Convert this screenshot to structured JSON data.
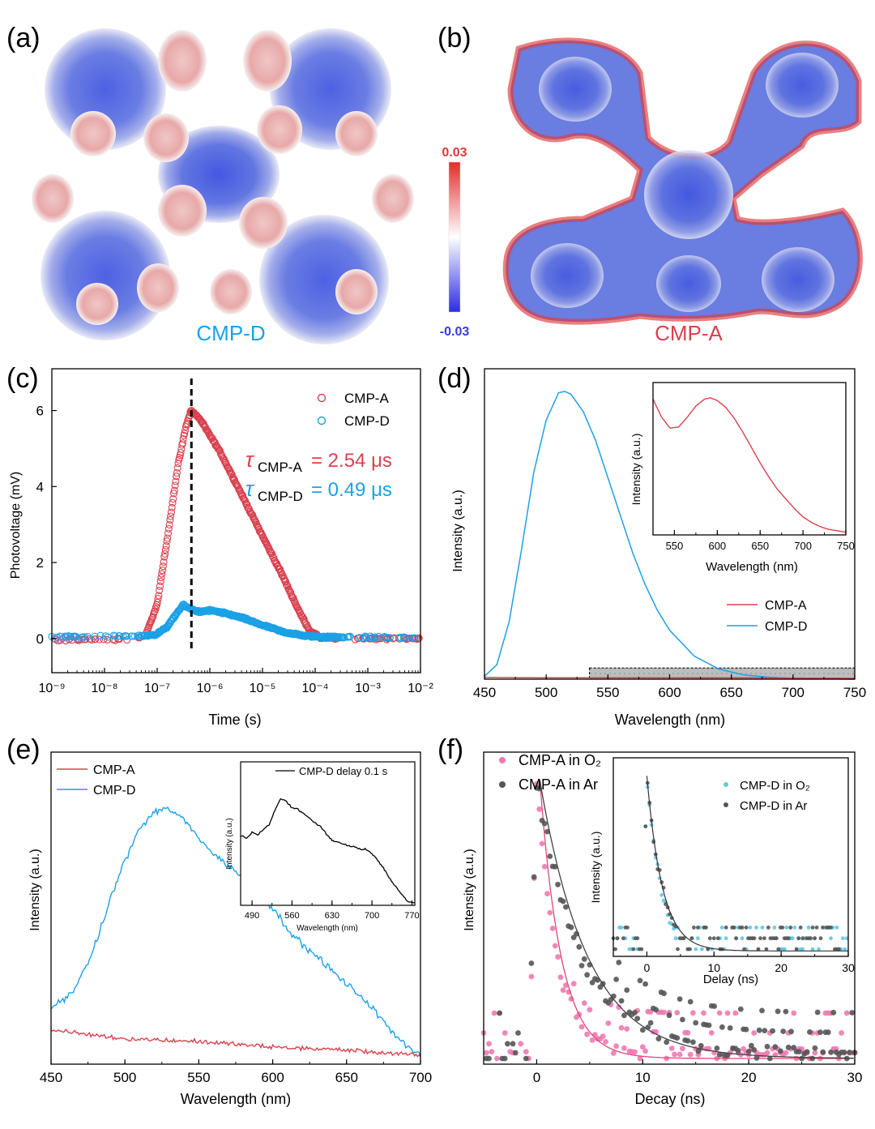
{
  "panel_labels": {
    "a": "(a)",
    "b": "(b)",
    "c": "(c)",
    "d": "(d)",
    "e": "(e)",
    "f": "(f)"
  },
  "colors": {
    "red": "#d9414f",
    "blue": "#1ba1e6",
    "pink": "#f07ab0",
    "gray": "#555555",
    "cyan": "#5ec8e8",
    "black": "#000000"
  },
  "esp": {
    "left_label": "CMP-D",
    "right_label": "CMP-A",
    "scale_max": "0.03",
    "scale_min": "-0.03"
  },
  "chart_data": [
    {
      "id": "c",
      "type": "scatter",
      "xlabel": "Time (s)",
      "ylabel": "Photovoltage (mV)",
      "xscale": "log",
      "xlim": [
        -9,
        -2
      ],
      "ylim": [
        -0.9,
        7.1
      ],
      "xtick_labels": [
        "10⁻⁹",
        "10⁻⁸",
        "10⁻⁷",
        "10⁻⁶",
        "10⁻⁵",
        "10⁻⁴",
        "10⁻³",
        "10⁻²"
      ],
      "yticks": [
        0,
        2,
        4,
        6
      ],
      "vline_log10": -6.35,
      "legend": [
        "CMP-A",
        "CMP-D"
      ],
      "annotations": {
        "tau_a_sub": "CMP-A",
        "tau_a_value": "= 2.54 μs",
        "tau_d_sub": "CMP-D",
        "tau_d_value": "= 0.49 μs"
      },
      "series": [
        {
          "name": "CMP-A",
          "color": "#d9414f",
          "x": [
            -9,
            -8,
            -7.4,
            -7.2,
            -7,
            -6.8,
            -6.6,
            -6.45,
            -6.36,
            -6.2,
            -5.8,
            -5.4,
            -5,
            -4.6,
            -4.3,
            -4.1,
            -3.9,
            -3.5,
            -3,
            -2
          ],
          "y": [
            -0.05,
            -0.02,
            -0.02,
            0.15,
            0.9,
            2.7,
            4.6,
            5.6,
            6.0,
            5.8,
            4.9,
            3.8,
            2.7,
            1.6,
            0.7,
            0.2,
            0.02,
            0,
            0,
            0
          ]
        },
        {
          "name": "CMP-D",
          "color": "#1ba1e6",
          "x": [
            -9,
            -8,
            -7.2,
            -7,
            -6.8,
            -6.6,
            -6.5,
            -6.4,
            -6.2,
            -6,
            -5.7,
            -5.4,
            -5,
            -4.6,
            -4.2,
            -3.8,
            -3,
            -2
          ],
          "y": [
            0.04,
            0.06,
            0.07,
            0.12,
            0.32,
            0.72,
            0.88,
            0.8,
            0.7,
            0.74,
            0.66,
            0.55,
            0.35,
            0.17,
            0.07,
            0.04,
            0.03,
            0.03
          ]
        }
      ]
    },
    {
      "id": "d",
      "type": "line",
      "xlabel": "Wavelength (nm)",
      "ylabel": "Intensity (a.u.)",
      "xlim": [
        450,
        750
      ],
      "ylim": [
        0,
        1.1
      ],
      "xticks": [
        450,
        500,
        550,
        600,
        650,
        700,
        750
      ],
      "legend": [
        "CMP-A",
        "CMP-D"
      ],
      "series": [
        {
          "name": "CMP-D",
          "color": "#1ba1e6",
          "x": [
            450,
            460,
            470,
            480,
            490,
            500,
            510,
            515,
            520,
            530,
            540,
            550,
            560,
            570,
            580,
            590,
            600,
            620,
            640,
            660,
            680,
            700,
            720,
            750
          ],
          "y": [
            0.01,
            0.05,
            0.2,
            0.45,
            0.72,
            0.9,
            0.995,
            1.0,
            0.99,
            0.93,
            0.83,
            0.7,
            0.57,
            0.44,
            0.33,
            0.24,
            0.17,
            0.08,
            0.035,
            0.015,
            0.007,
            0.003,
            0.001,
            0
          ]
        },
        {
          "name": "CMP-A",
          "color": "#d9414f",
          "x": [
            450,
            500,
            550,
            600,
            650,
            700,
            750
          ],
          "y": [
            0.006,
            0.005,
            0.005,
            0.005,
            0.005,
            0.004,
            0.003
          ]
        }
      ],
      "shaded_region": [
        535,
        750
      ],
      "inset": {
        "xlabel": "Wavelength (nm)",
        "ylabel": "Intensity (a.u.)",
        "xlim": [
          525,
          750
        ],
        "xticks": [
          550,
          600,
          650,
          700,
          750
        ],
        "ylim": [
          0,
          1.1
        ],
        "series": [
          {
            "name": "CMP-A",
            "color": "#d9414f",
            "x": [
              525,
              535,
              545,
              555,
              565,
              575,
              585,
              592,
              600,
              610,
              620,
              630,
              640,
              650,
              660,
              670,
              680,
              690,
              700,
              710,
              720,
              730,
              740,
              750
            ],
            "y": [
              0.98,
              0.85,
              0.77,
              0.78,
              0.85,
              0.93,
              0.98,
              0.99,
              0.97,
              0.92,
              0.84,
              0.74,
              0.63,
              0.52,
              0.42,
              0.33,
              0.26,
              0.19,
              0.13,
              0.09,
              0.06,
              0.04,
              0.03,
              0.02
            ]
          }
        ]
      }
    },
    {
      "id": "e",
      "type": "line",
      "xlabel": "Wavelength (nm)",
      "ylabel": "Intensity (a.u.)",
      "xlim": [
        450,
        700
      ],
      "ylim": [
        0,
        1.1
      ],
      "xticks": [
        450,
        500,
        550,
        600,
        650,
        700
      ],
      "legend": [
        "CMP-A",
        "CMP-D"
      ],
      "series": [
        {
          "name": "CMP-D",
          "color": "#1ba1e6",
          "x": [
            450,
            460,
            470,
            480,
            490,
            500,
            510,
            520,
            530,
            540,
            550,
            560,
            570,
            580,
            590,
            600,
            610,
            620,
            630,
            640,
            650,
            660,
            670,
            680,
            690,
            700
          ],
          "y": [
            0.2,
            0.23,
            0.3,
            0.42,
            0.58,
            0.72,
            0.83,
            0.89,
            0.9,
            0.86,
            0.8,
            0.74,
            0.7,
            0.66,
            0.6,
            0.55,
            0.48,
            0.42,
            0.38,
            0.33,
            0.28,
            0.24,
            0.18,
            0.12,
            0.07,
            0.03
          ]
        },
        {
          "name": "CMP-A",
          "color": "#d9414f",
          "x": [
            450,
            500,
            550,
            600,
            650,
            700
          ],
          "y": [
            0.12,
            0.09,
            0.08,
            0.06,
            0.05,
            0.03
          ]
        }
      ],
      "inset": {
        "legend": "CMP-D delay 0.1 s",
        "xlabel": "Wavelength (nm)",
        "ylabel": "Intensity (a.u.)",
        "xlim": [
          470,
          775
        ],
        "xticks": [
          490,
          560,
          630,
          700,
          770
        ],
        "ylim": [
          0,
          1.1
        ],
        "series": [
          {
            "name": "CMP-D delay 0.1 s",
            "color": "#000000",
            "x": [
              470,
              480,
              490,
              500,
              510,
              520,
              530,
              540,
              550,
              560,
              570,
              580,
              590,
              600,
              610,
              620,
              630,
              640,
              650,
              660,
              670,
              680,
              690,
              700,
              710,
              720,
              730,
              740,
              750,
              760,
              770
            ],
            "y": [
              0.62,
              0.6,
              0.65,
              0.63,
              0.68,
              0.72,
              0.85,
              0.95,
              0.93,
              0.87,
              0.86,
              0.82,
              0.78,
              0.74,
              0.7,
              0.64,
              0.58,
              0.56,
              0.55,
              0.53,
              0.52,
              0.5,
              0.5,
              0.46,
              0.4,
              0.33,
              0.25,
              0.18,
              0.11,
              0.05,
              0.02
            ]
          }
        ]
      }
    },
    {
      "id": "f",
      "type": "scatter",
      "xlabel": "Decay (ns)",
      "ylabel": "Intensity (a.u.)",
      "xlim": [
        -5,
        30
      ],
      "ylim": [
        0,
        1.1
      ],
      "xticks": [
        0,
        10,
        20,
        30
      ],
      "legend": [
        "CMP-A in O₂",
        "CMP-A in Ar"
      ],
      "series": [
        {
          "name": "CMP-A in O₂",
          "color": "#f07ab0",
          "tau_ns": 2.0
        },
        {
          "name": "CMP-A in Ar",
          "color": "#555555",
          "tau_ns": 4.5
        }
      ],
      "inset": {
        "legend": [
          "CMP-D in O₂",
          "CMP-D in Ar"
        ],
        "xlabel": "Delay (ns)",
        "ylabel": "Intensity (a.u.)",
        "xlim": [
          -5,
          30
        ],
        "xticks": [
          0,
          10,
          20,
          30
        ],
        "ylim": [
          0,
          1.1
        ],
        "series": [
          {
            "name": "CMP-D in O₂",
            "color": "#5ec8e8",
            "tau_ns": 2.2
          },
          {
            "name": "CMP-D in Ar",
            "color": "#555555",
            "tau_ns": 2.4
          }
        ]
      }
    }
  ]
}
